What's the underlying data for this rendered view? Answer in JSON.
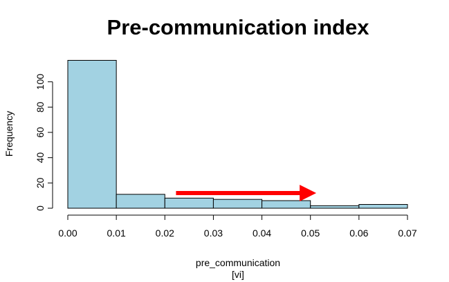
{
  "chart_data": {
    "type": "bar",
    "title": "Pre-communication index",
    "xlabel": "pre_communication",
    "xlabel_sub": "[vi]",
    "ylabel": "Frequency",
    "bin_edges": [
      0.0,
      0.01,
      0.02,
      0.03,
      0.04,
      0.05,
      0.06,
      0.07
    ],
    "values": [
      117,
      11,
      8,
      7,
      6,
      2,
      3
    ],
    "xlim": [
      0.0,
      0.07
    ],
    "ylim": [
      0,
      120
    ],
    "x_ticks": [
      "0.00",
      "0.01",
      "0.02",
      "0.03",
      "0.04",
      "0.05",
      "0.06",
      "0.07"
    ],
    "y_ticks": [
      "0",
      "20",
      "40",
      "60",
      "80",
      "100"
    ],
    "bar_color": "#a2d2e2",
    "grid": false,
    "annotation": {
      "type": "arrow",
      "color": "#ff0000",
      "x_start": 0.0223,
      "x_end": 0.0512,
      "y": 12
    }
  }
}
